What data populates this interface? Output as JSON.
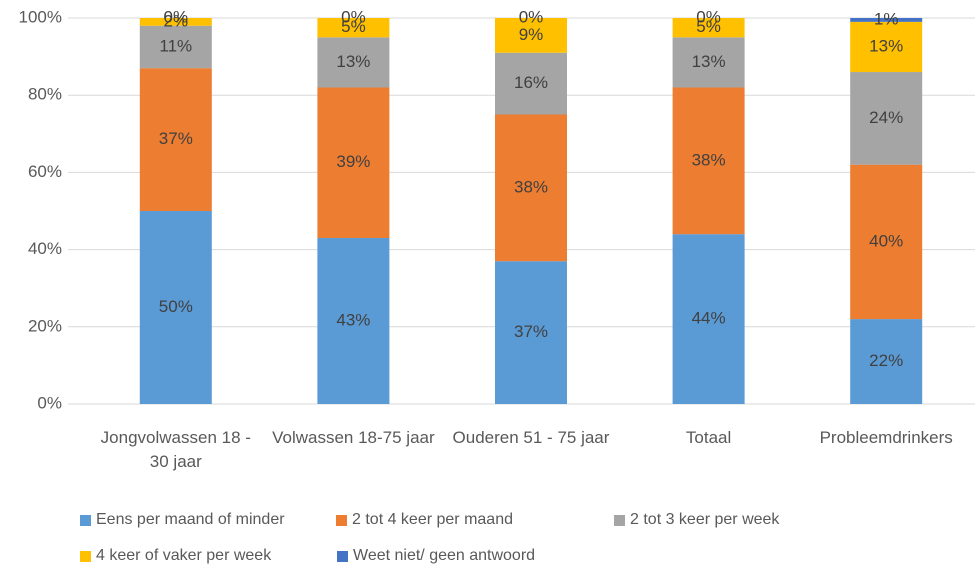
{
  "chart_data": {
    "type": "stacked_bar",
    "categories": [
      "Jongvolwassen 18 - 30 jaar",
      "Volwassen 18-75 jaar",
      "Ouderen 51 - 75 jaar",
      "Totaal",
      "Probleemdrinkers"
    ],
    "series": [
      {
        "name": "Eens per maand of minder",
        "color": "#5b9bd5",
        "values": [
          50,
          43,
          37,
          44,
          22
        ],
        "value_labels": [
          "50%",
          "43%",
          "37%",
          "44%",
          "22%"
        ]
      },
      {
        "name": "2 tot 4 keer per maand",
        "color": "#ed7d31",
        "values": [
          37,
          39,
          38,
          38,
          40
        ],
        "value_labels": [
          "37%",
          "39%",
          "38%",
          "38%",
          "40%"
        ]
      },
      {
        "name": "2 tot 3 keer per week",
        "color": "#a5a5a5",
        "values": [
          11,
          13,
          16,
          13,
          24
        ],
        "value_labels": [
          "11%",
          "13%",
          "16%",
          "13%",
          "24%"
        ]
      },
      {
        "name": "4 keer of vaker per week",
        "color": "#ffc000",
        "values": [
          2,
          5,
          9,
          5,
          13
        ],
        "value_labels": [
          "2%",
          "5%",
          "9%",
          "5%",
          "13%"
        ]
      },
      {
        "name": "Weet niet/ geen antwoord",
        "color": "#4472c4",
        "values": [
          0,
          0,
          0,
          0,
          1
        ],
        "value_labels": [
          "0%",
          "0%",
          "0%",
          "0%",
          "1%"
        ]
      }
    ],
    "ylim": [
      0,
      100
    ],
    "yticks": [
      {
        "value": 0,
        "label": "0%"
      },
      {
        "value": 20,
        "label": "20%"
      },
      {
        "value": 40,
        "label": "40%"
      },
      {
        "value": 60,
        "label": "60%"
      },
      {
        "value": 80,
        "label": "80%"
      },
      {
        "value": 100,
        "label": "100%"
      }
    ],
    "grid": true,
    "legend": "bottom"
  }
}
